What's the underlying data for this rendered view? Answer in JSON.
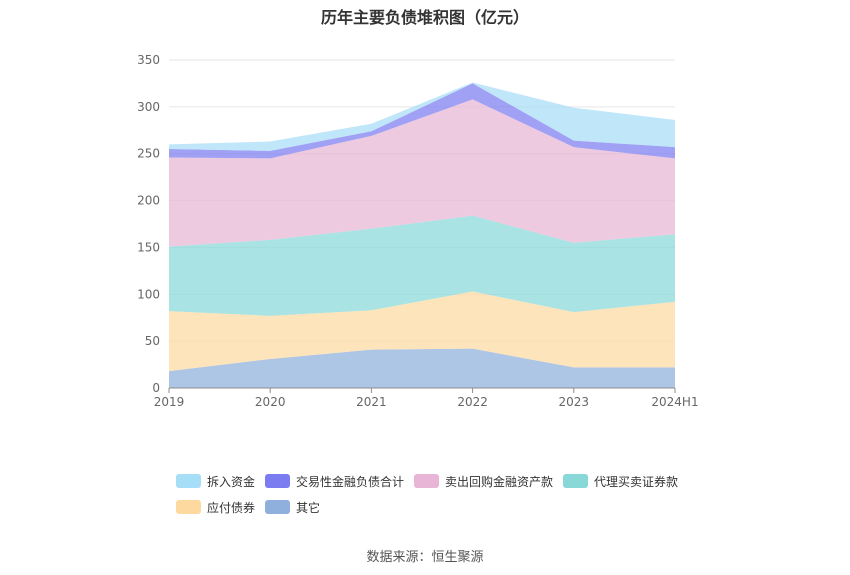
{
  "title": "历年主要负债堆积图（亿元）",
  "source": "数据来源：恒生聚源",
  "chart_data": {
    "type": "area",
    "stacked": true,
    "categories": [
      "2019",
      "2020",
      "2021",
      "2022",
      "2023",
      "2024H1"
    ],
    "ylim": [
      0,
      350
    ],
    "yticks": [
      0,
      50,
      100,
      150,
      200,
      250,
      300,
      350
    ],
    "grid": true,
    "legend_position": "bottom",
    "series": [
      {
        "name": "其它",
        "color": "#8fb0dc",
        "values": [
          18,
          31,
          41,
          42,
          22,
          22
        ]
      },
      {
        "name": "应付债券",
        "color": "#fdd9a0",
        "values": [
          64,
          46,
          42,
          61,
          59,
          70
        ]
      },
      {
        "name": "代理买卖证券款",
        "color": "#88d8d8",
        "values": [
          69,
          81,
          87,
          81,
          74,
          72
        ]
      },
      {
        "name": "卖出回购金融资产款",
        "color": "#e8b5d6",
        "values": [
          95,
          87,
          99,
          124,
          102,
          81
        ]
      },
      {
        "name": "交易性金融负债合计",
        "color": "#7b7cf0",
        "values": [
          9,
          8,
          5,
          17,
          7,
          12
        ]
      },
      {
        "name": "拆入资金",
        "color": "#a6ddf7",
        "values": [
          5,
          10,
          8,
          1,
          35,
          29
        ]
      }
    ],
    "legend_order": [
      "拆入资金",
      "交易性金融负债合计",
      "卖出回购金融资产款",
      "代理买卖证券款",
      "应付债券",
      "其它"
    ]
  }
}
